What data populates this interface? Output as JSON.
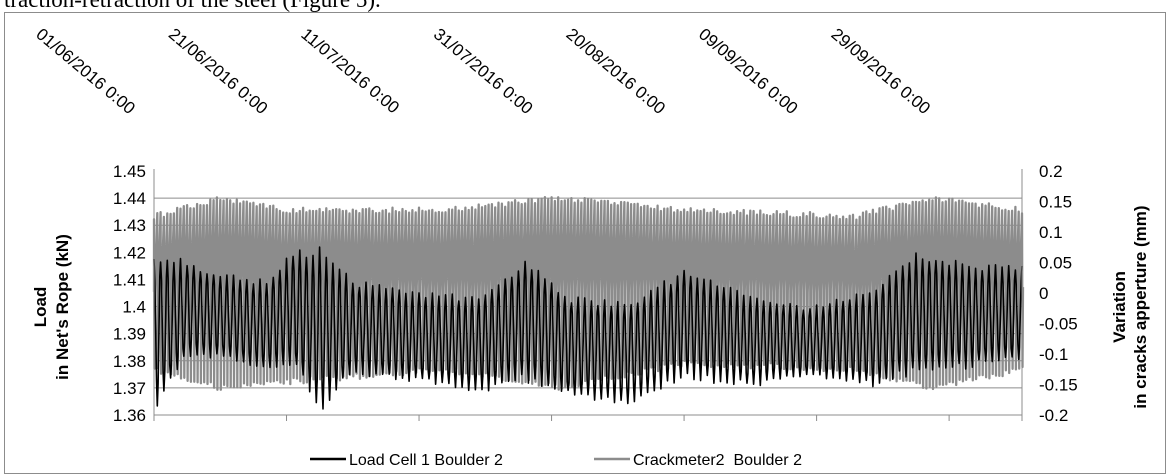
{
  "page": {
    "intro_text": "traction-retraction of the steel (Figure 5)."
  },
  "chart_data": {
    "type": "line",
    "title": "",
    "x_tick_labels": [
      "01/06/2016 0:00",
      "21/06/2016 0:00",
      "11/07/2016 0:00",
      "31/07/2016 0:00",
      "20/08/2016 0:00",
      "09/09/2016 0:00",
      "29/09/2016 0:00"
    ],
    "x_range": [
      "2016-06-01",
      "2016-10-10"
    ],
    "y_left": {
      "label_line1": "Load",
      "label_line2": "in Net's Rope (kN)",
      "range": [
        1.36,
        1.45
      ],
      "tick_labels": [
        "1.45",
        "1.44",
        "1.43",
        "1.42",
        "1.41",
        "1.4",
        "1.39",
        "1.38",
        "1.37",
        "1.36"
      ]
    },
    "y_right": {
      "label_line1": "Variation",
      "label_line2": "in cracks apperture (mm)",
      "range": [
        -0.2,
        0.2
      ],
      "tick_labels": [
        "0.2",
        "0.15",
        "0.1",
        "0.05",
        "0",
        "-0.05",
        "-0.1",
        "-0.15",
        "-0.2"
      ]
    },
    "grid": "horizontal",
    "legend_position": "bottom",
    "series": [
      {
        "name": "Load Cell 1 Boulder 2",
        "axis": "left",
        "color": "#000000",
        "description": "daily oscillation",
        "envelope": [
          {
            "date": "2016-06-01",
            "min": 1.36,
            "max": 1.421
          },
          {
            "date": "2016-06-06",
            "min": 1.381,
            "max": 1.417
          },
          {
            "date": "2016-06-12",
            "min": 1.38,
            "max": 1.412
          },
          {
            "date": "2016-06-18",
            "min": 1.376,
            "max": 1.41
          },
          {
            "date": "2016-06-22",
            "min": 1.378,
            "max": 1.421
          },
          {
            "date": "2016-06-26",
            "min": 1.36,
            "max": 1.422
          },
          {
            "date": "2016-07-01",
            "min": 1.375,
            "max": 1.41
          },
          {
            "date": "2016-07-10",
            "min": 1.372,
            "max": 1.406
          },
          {
            "date": "2016-07-20",
            "min": 1.368,
            "max": 1.404
          },
          {
            "date": "2016-07-27",
            "min": 1.372,
            "max": 1.418
          },
          {
            "date": "2016-08-03",
            "min": 1.366,
            "max": 1.404
          },
          {
            "date": "2016-08-12",
            "min": 1.364,
            "max": 1.402
          },
          {
            "date": "2016-08-20",
            "min": 1.373,
            "max": 1.414
          },
          {
            "date": "2016-08-30",
            "min": 1.37,
            "max": 1.404
          },
          {
            "date": "2016-09-08",
            "min": 1.374,
            "max": 1.4
          },
          {
            "date": "2016-09-17",
            "min": 1.37,
            "max": 1.406
          },
          {
            "date": "2016-09-24",
            "min": 1.375,
            "max": 1.42
          },
          {
            "date": "2016-10-02",
            "min": 1.377,
            "max": 1.416
          },
          {
            "date": "2016-10-10",
            "min": 1.38,
            "max": 1.415
          }
        ]
      },
      {
        "name": "Crackmeter2  Boulder 2",
        "axis": "right",
        "color": "#8c8c8c",
        "description": "spikes",
        "envelope": [
          {
            "date": "2016-06-01",
            "min": -0.13,
            "max": 0.13
          },
          {
            "date": "2016-06-11",
            "min": -0.16,
            "max": 0.16
          },
          {
            "date": "2016-06-21",
            "min": -0.15,
            "max": 0.14
          },
          {
            "date": "2016-07-15",
            "min": -0.13,
            "max": 0.14
          },
          {
            "date": "2016-08-01",
            "min": -0.16,
            "max": 0.16
          },
          {
            "date": "2016-08-20",
            "min": -0.12,
            "max": 0.14
          },
          {
            "date": "2016-09-15",
            "min": -0.13,
            "max": 0.13
          },
          {
            "date": "2016-09-26",
            "min": -0.16,
            "max": 0.16
          },
          {
            "date": "2016-10-10",
            "min": -0.13,
            "max": 0.14
          }
        ]
      }
    ]
  }
}
